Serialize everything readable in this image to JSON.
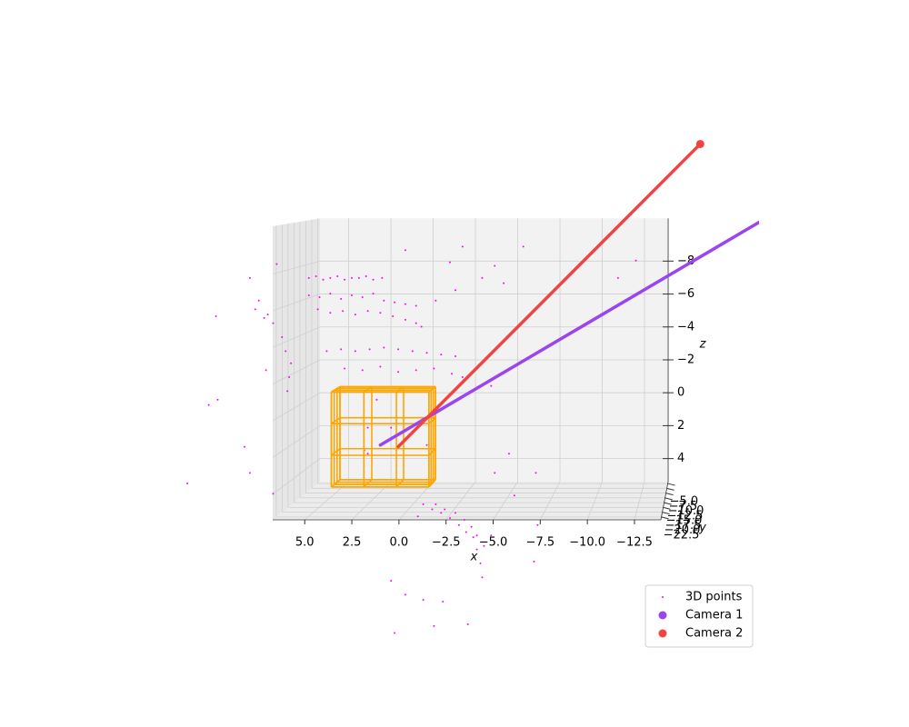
{
  "chart_data": {
    "type": "scatter3d",
    "xlabel": "x",
    "ylabel": "y",
    "zlabel": "z",
    "xlim": [
      6.7,
      -13.9
    ],
    "ylim": [
      -24,
      -4
    ],
    "zlim": [
      5.4,
      -10.6
    ],
    "xticks": [
      {
        "value": 5,
        "label": "5.0"
      },
      2.5,
      {
        "value": 0,
        "label": "0.0"
      },
      {
        "value": -2.5,
        "label": "−2.5"
      },
      {
        "value": -5,
        "label": "−5.0"
      },
      {
        "value": -7.5,
        "label": "−7.5"
      },
      {
        "value": -10,
        "label": "−10.0"
      },
      {
        "value": -12.5,
        "label": "−12.5"
      }
    ],
    "yticks": [
      {
        "value": -5,
        "label": "−5.0"
      },
      {
        "value": -7.5,
        "label": "−7.5"
      },
      {
        "value": -10,
        "label": "−10.0"
      },
      {
        "value": -12.5,
        "label": "−12.5"
      },
      {
        "value": -15,
        "label": "−15.0"
      },
      {
        "value": -17.5,
        "label": "−17.5"
      },
      {
        "value": -20,
        "label": "−20.0"
      },
      {
        "value": -22.5,
        "label": "−22.5"
      }
    ],
    "zticks": [
      {
        "value": -8,
        "label": "−8"
      },
      {
        "value": -6,
        "label": "−6"
      },
      {
        "value": -4,
        "label": "−4"
      },
      {
        "value": -2,
        "label": "−2"
      },
      0,
      2,
      4
    ],
    "grid": true,
    "legend": "lower right",
    "series": [
      {
        "name": "3D points",
        "color": "#ff00ff",
        "x": [
          6.0,
          5.6,
          5.2,
          4.8,
          4.4,
          4.0,
          3.6,
          3.2,
          2.8,
          2.4,
          1.9,
          6.0,
          5.4,
          4.8,
          4.2,
          3.6,
          3.0,
          2.4,
          1.8,
          1.2,
          0.6,
          0.0,
          5.5,
          4.8,
          4.1,
          3.4,
          2.7,
          2.0,
          1.3,
          0.6,
          0.0,
          -0.3,
          5.0,
          4.2,
          3.4,
          2.6,
          1.8,
          1.0,
          0.2,
          -0.6,
          -1.4,
          -2.2,
          4.0,
          3.0,
          2.0,
          1.0,
          0.0,
          -1.0,
          -2.0,
          -2.6,
          9.3,
          8.8,
          8.3,
          8.0,
          7.5,
          7.3,
          7.0,
          7.1,
          7.2,
          7.8,
          9.0,
          8.5,
          0.6,
          -2.6,
          -6.0,
          -1.9,
          -4.4,
          -3.7,
          -11.3,
          -4.9,
          -12.3,
          -1.1,
          -2.2,
          -4.2,
          11.2,
          11.6,
          11.1,
          9.6,
          9.3,
          8.0,
          12.8,
          8.4,
          -0.4,
          -0.9,
          -1.4,
          -1.9,
          -2.4,
          -2.8,
          -3.2,
          -3.4,
          -3.6,
          -3.7,
          -1.6,
          -2.2,
          -2.7,
          -3.1,
          -3.4,
          -3.8,
          -1.1,
          -0.1,
          -4.2,
          1.4,
          0.6,
          -0.4,
          -1.5,
          -1.0,
          -2.9,
          1.2,
          -6.8,
          -6.6,
          -5.5,
          -4.4,
          -6.7,
          -5.2,
          2.7,
          2.9,
          1.4,
          2.7,
          -0.6,
          2.2
        ],
        "y": [
          -14,
          -14,
          -14,
          -14,
          -14,
          -14,
          -14,
          -14,
          -14,
          -14,
          -14,
          -14,
          -14,
          -14,
          -14,
          -14,
          -14,
          -14,
          -14,
          -14,
          -14,
          -14,
          -14,
          -14,
          -14,
          -14,
          -14,
          -14,
          -14,
          -14,
          -14,
          -14,
          -14,
          -14,
          -14,
          -14,
          -14,
          -14,
          -14,
          -14,
          -14,
          -14,
          -14,
          -14,
          -14,
          -14,
          -14,
          -14,
          -14,
          -14,
          -14,
          -14,
          -14,
          -14,
          -14,
          -14,
          -14,
          -14,
          -14,
          -14,
          -14,
          -14,
          -14,
          -14,
          -14,
          -14,
          -14,
          -14,
          -14,
          -14,
          -14,
          -14,
          -14,
          -14,
          -14,
          -14,
          -14,
          -14,
          -14,
          -14,
          -14,
          -14,
          -14,
          -14,
          -14,
          -14,
          -14,
          -14,
          -14,
          -14,
          -14,
          -14,
          -14,
          -14,
          -14,
          -14,
          -14,
          -14,
          -14,
          -14,
          -14,
          -14,
          -14,
          -14,
          -14,
          -14,
          -14,
          -14,
          -14,
          -14,
          -14,
          -14,
          -14,
          -14,
          -14,
          -14,
          -14,
          -14,
          -14,
          -14
        ],
        "z": [
          -7.4,
          -7.5,
          -7.3,
          -7.4,
          -7.5,
          -7.3,
          -7.4,
          -7.4,
          -7.5,
          -7.3,
          -7.4,
          -6.4,
          -6.3,
          -6.5,
          -6.2,
          -6.4,
          -6.3,
          -6.5,
          -6.1,
          -6.0,
          -5.9,
          -5.8,
          -5.6,
          -5.4,
          -5.5,
          -5.3,
          -5.5,
          -5.4,
          -5.2,
          -5.0,
          -4.8,
          -4.6,
          -3.2,
          -3.3,
          -3.2,
          -3.3,
          -3.4,
          -3.3,
          -3.2,
          -3.1,
          -3.0,
          -2.9,
          -2.2,
          -2.1,
          -2.3,
          -2.0,
          -2.1,
          -2.2,
          -1.9,
          -1.7,
          -7.4,
          -6.1,
          -5.3,
          -4.8,
          -4.0,
          -3.2,
          -2.5,
          -1.7,
          -0.9,
          -8.2,
          -5.6,
          -5.1,
          -9.0,
          -9.2,
          -9.2,
          -8.3,
          -8.1,
          -7.4,
          -7.4,
          -7.1,
          -8.4,
          -6.1,
          -6.7,
          -1.2,
          -5.2,
          -0.1,
          -0.4,
          2.3,
          3.8,
          5.0,
          4.4,
          -2.1,
          5.6,
          5.9,
          6.1,
          6.4,
          6.8,
          7.2,
          7.5,
          8.2,
          9.0,
          9.8,
          5.9,
          6.1,
          6.5,
          6.9,
          7.4,
          8.0,
          5.6,
          6.3,
          7.4,
          10.0,
          10.8,
          11.1,
          11.2,
          12.6,
          12.5,
          13.0,
          6.8,
          8.9,
          5.1,
          3.8,
          3.8,
          2.7,
          1.2,
          2.5,
          1.2,
          2.7,
          2.2,
          -0.4
        ]
      },
      {
        "name": "Camera 1",
        "color": "#9a45f0",
        "position": [
          -22.5,
          -14,
          -12.6
        ],
        "ray_end": [
          2.0,
          -14,
          2.2
        ]
      },
      {
        "name": "Camera 2",
        "color": "#ef4444",
        "position": [
          -15.9,
          -14,
          -15.1
        ],
        "ray_end": [
          1.0,
          -14,
          2.3
        ]
      }
    ],
    "cube": {
      "color": "#ffa500",
      "x": [
        4.5,
        -0.9
      ],
      "y": [
        -16,
        -12
      ],
      "z": [
        -1.0,
        4.4
      ],
      "divisions": 3
    }
  }
}
